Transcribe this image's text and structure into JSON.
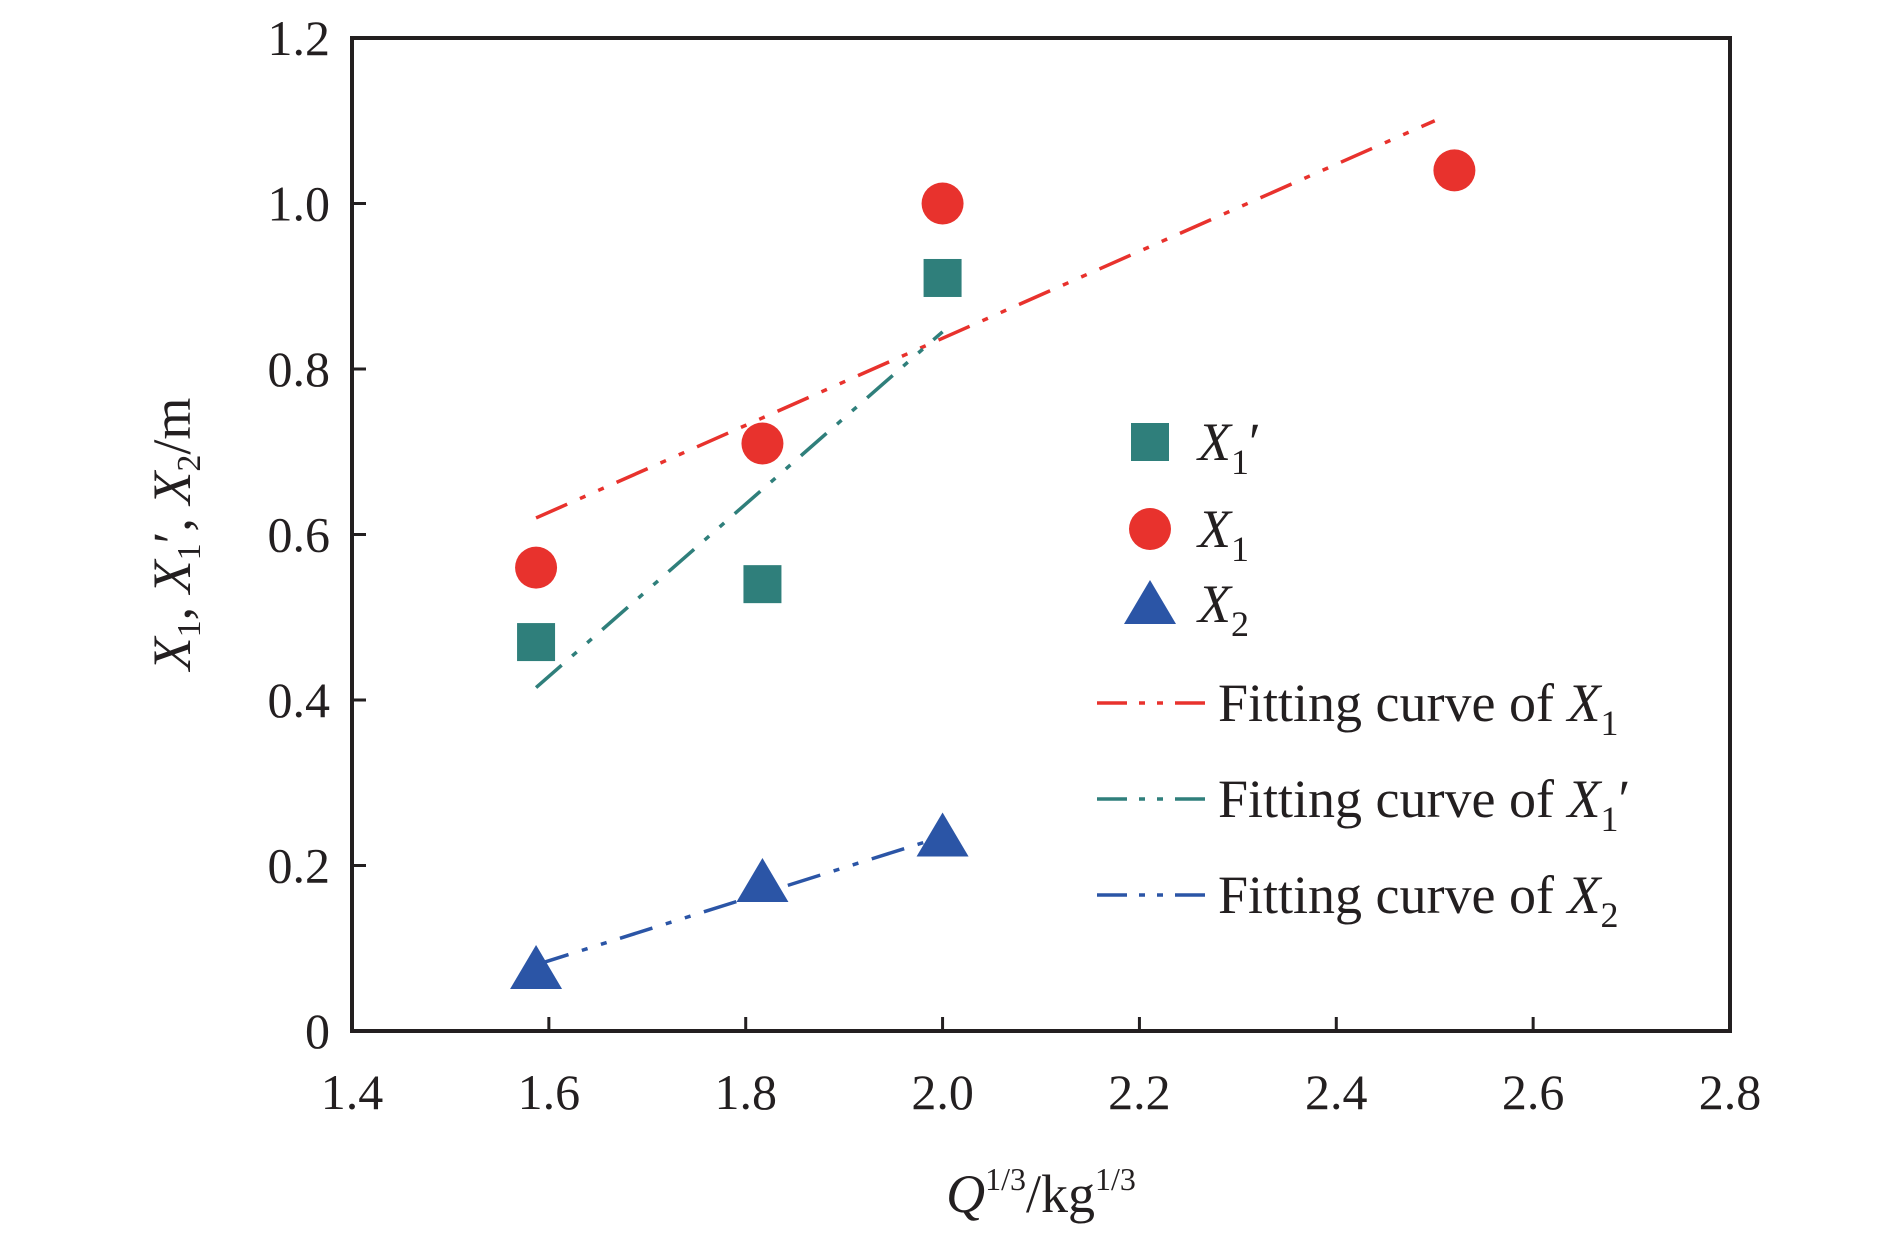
{
  "chart_data": {
    "type": "scatter",
    "title": "",
    "xlabel": {
      "base": "Q",
      "base_sup": "1/3",
      "unit": "/kg",
      "unit_sup": "1/3"
    },
    "ylabel": {
      "parts": [
        "X",
        "1",
        ", ",
        "X",
        "1",
        "′",
        ", ",
        "X",
        "2",
        "/m"
      ]
    },
    "xlim": [
      1.4,
      2.8
    ],
    "ylim": [
      0,
      1.2
    ],
    "xticks": [
      "1.4",
      "1.6",
      "1.8",
      "2.0",
      "2.2",
      "2.4",
      "2.6",
      "2.8"
    ],
    "yticks": [
      "0",
      "0.2",
      "0.4",
      "0.6",
      "0.8",
      "1.0",
      "1.2"
    ],
    "grid": false,
    "legend_position": "right",
    "series": [
      {
        "key": "x1p",
        "label_main": "X",
        "label_sub": "1",
        "label_prime": "′",
        "marker": "square",
        "color": "#2f7f7b",
        "points": [
          [
            1.587,
            0.47
          ],
          [
            1.817,
            0.54
          ],
          [
            2.0,
            0.91
          ]
        ]
      },
      {
        "key": "x1",
        "label_main": "X",
        "label_sub": "1",
        "label_prime": "",
        "marker": "circle",
        "color": "#e8322d",
        "points": [
          [
            1.587,
            0.56
          ],
          [
            1.817,
            0.71
          ],
          [
            2.0,
            1.0
          ],
          [
            2.52,
            1.04
          ]
        ]
      },
      {
        "key": "x2",
        "label_main": "X",
        "label_sub": "2",
        "label_prime": "",
        "marker": "triangle",
        "color": "#2b55a6",
        "points": [
          [
            1.587,
            0.075
          ],
          [
            1.817,
            0.18
          ],
          [
            2.0,
            0.235
          ]
        ]
      }
    ],
    "fits": [
      {
        "key": "fit-x1",
        "prefix": "Fitting curve of ",
        "label_main": "X",
        "label_sub": "1",
        "label_prime": "",
        "color": "#e8322d",
        "x": [
          1.587,
          2.5
        ],
        "y": [
          0.62,
          1.1
        ]
      },
      {
        "key": "fit-x1p",
        "prefix": "Fitting curve of ",
        "label_main": "X",
        "label_sub": "1",
        "label_prime": "′",
        "color": "#2f7f7b",
        "x": [
          1.587,
          2.0
        ],
        "y": [
          0.415,
          0.845
        ]
      },
      {
        "key": "fit-x2",
        "prefix": "Fitting curve of ",
        "label_main": "X",
        "label_sub": "2",
        "label_prime": "",
        "color": "#2b55a6",
        "x": [
          1.587,
          2.0
        ],
        "y": [
          0.08,
          0.235
        ]
      }
    ]
  }
}
